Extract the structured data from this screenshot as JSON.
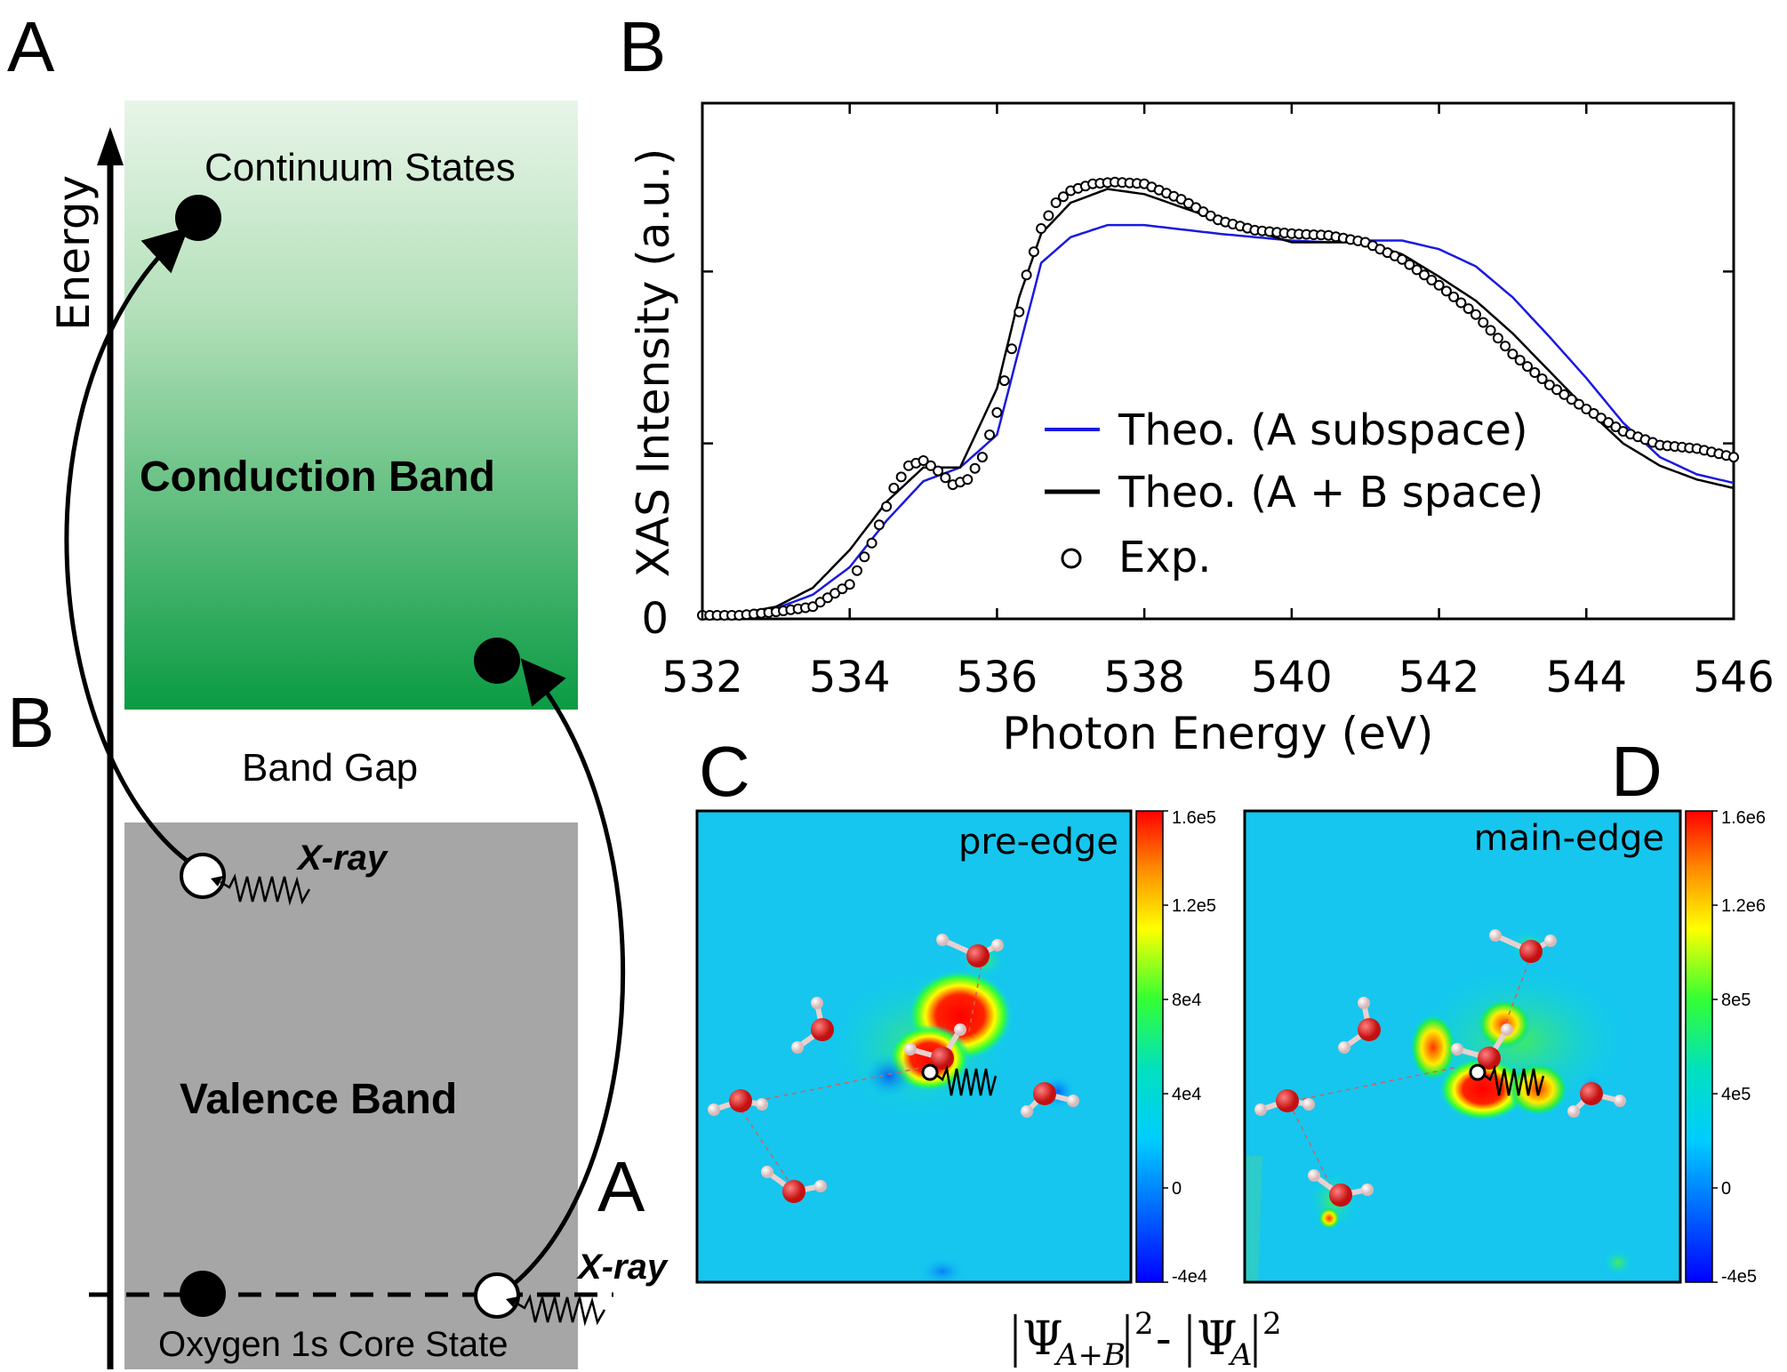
{
  "panel_labels": {
    "A": "A",
    "B": "B",
    "C": "C",
    "D": "D",
    "state_A": "A",
    "state_B": "B"
  },
  "schematic": {
    "energy_axis": "Energy",
    "continuum": "Continuum States",
    "conduction": "Conduction Band",
    "band_gap": "Band Gap",
    "valence": "Valence Band",
    "core": "Oxygen 1s Core State",
    "xray_1": "X-ray",
    "xray_2": "X-ray",
    "colors": {
      "conduction_top": "#e6f4e6",
      "conduction_bottom": "#0a9b43",
      "valence": "#a6a6a6"
    }
  },
  "chart_data": {
    "type": "line",
    "xlabel": "Photon Energy (eV)",
    "ylabel": "XAS Intensity (a.u.)",
    "xlim": [
      532,
      546
    ],
    "ylim": [
      0,
      3
    ],
    "xticks": [
      "532",
      "534",
      "536",
      "538",
      "540",
      "542",
      "544",
      "546"
    ],
    "yticks": [
      "0"
    ],
    "legend_position": "center-right",
    "series": [
      {
        "name": "Theo. (A subspace)",
        "color": "#1a1adf",
        "style": "line",
        "x": [
          532.0,
          532.5,
          533.0,
          533.5,
          534.0,
          534.5,
          535.0,
          535.5,
          536.0,
          536.3,
          536.6,
          537.0,
          537.5,
          538.0,
          539.0,
          540.0,
          540.5,
          541.0,
          541.5,
          542.0,
          542.5,
          543.0,
          543.5,
          544.0,
          544.5,
          545.0,
          545.5,
          546.0
        ],
        "y": [
          0.0,
          0.01,
          0.04,
          0.12,
          0.28,
          0.55,
          0.78,
          0.86,
          1.05,
          1.55,
          2.05,
          2.2,
          2.27,
          2.27,
          2.22,
          2.18,
          2.17,
          2.18,
          2.18,
          2.13,
          2.03,
          1.85,
          1.62,
          1.38,
          1.12,
          0.92,
          0.82,
          0.77
        ]
      },
      {
        "name": "Theo. (A + B space)",
        "color": "#000000",
        "style": "line",
        "x": [
          532.0,
          532.5,
          533.0,
          533.5,
          534.0,
          534.5,
          535.0,
          535.5,
          536.0,
          536.3,
          536.6,
          537.0,
          537.5,
          538.0,
          539.0,
          540.0,
          540.5,
          541.0,
          541.5,
          542.0,
          542.5,
          543.0,
          543.5,
          544.0,
          544.5,
          545.0,
          545.5,
          546.0
        ],
        "y": [
          0.0,
          0.01,
          0.05,
          0.16,
          0.38,
          0.66,
          0.86,
          0.86,
          1.32,
          1.85,
          2.22,
          2.4,
          2.48,
          2.45,
          2.3,
          2.17,
          2.17,
          2.17,
          2.1,
          1.97,
          1.83,
          1.64,
          1.42,
          1.2,
          1.0,
          0.87,
          0.79,
          0.74
        ]
      },
      {
        "name": "Exp.",
        "color": "#000000",
        "style": "markers",
        "x": [
          532.0,
          532.5,
          533.0,
          533.5,
          534.0,
          534.3,
          534.6,
          534.8,
          535.0,
          535.2,
          535.4,
          535.6,
          535.8,
          536.0,
          536.2,
          536.4,
          536.6,
          536.8,
          537.0,
          537.3,
          537.6,
          538.0,
          538.5,
          539.0,
          539.5,
          540.0,
          540.5,
          541.0,
          541.5,
          542.0,
          542.5,
          543.0,
          543.5,
          544.0,
          544.5,
          545.0,
          545.5,
          546.0
        ],
        "y": [
          0.0,
          0.0,
          0.02,
          0.05,
          0.18,
          0.42,
          0.74,
          0.87,
          0.9,
          0.84,
          0.76,
          0.79,
          0.92,
          1.18,
          1.55,
          1.98,
          2.25,
          2.4,
          2.47,
          2.51,
          2.52,
          2.51,
          2.42,
          2.3,
          2.24,
          2.22,
          2.21,
          2.17,
          2.07,
          1.92,
          1.75,
          1.52,
          1.34,
          1.2,
          1.07,
          0.99,
          0.97,
          0.92
        ]
      }
    ]
  },
  "maps": {
    "C": {
      "label": "pre-edge",
      "colorbar_ticks": [
        "1.6e5",
        "1.2e5",
        "8e4",
        "4e4",
        "0",
        "-4e4"
      ]
    },
    "D": {
      "label": "main-edge",
      "colorbar_ticks": [
        "1.6e6",
        "1.2e6",
        "8e5",
        "4e5",
        "0",
        "-4e5"
      ]
    },
    "formula": {
      "psi": "Ψ",
      "sub_ab": "A+B",
      "sub_a": "A",
      "sup": "2",
      "minus": "-"
    }
  }
}
